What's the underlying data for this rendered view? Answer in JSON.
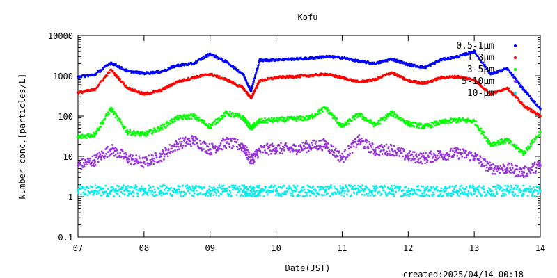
{
  "chart_data": {
    "type": "scatter",
    "title": "Kofu",
    "xlabel": "Date(JST)",
    "ylabel": "Number conc.[particles/L]",
    "yscale": "log",
    "ylim": [
      0.1,
      10000
    ],
    "xlim": [
      7,
      14
    ],
    "xticks": [
      7,
      8,
      9,
      10,
      11,
      12,
      13,
      14
    ],
    "xtick_labels": [
      "07",
      "08",
      "09",
      "10",
      "11",
      "12",
      "13",
      "14"
    ],
    "yticks": [
      0.1,
      1,
      10,
      100,
      1000,
      10000
    ],
    "ytick_labels": [
      "0.1",
      "1",
      "10",
      "100",
      "1000",
      "10000"
    ],
    "legend_position": "top-right",
    "footer": "created:2025/04/14 00:18",
    "series": [
      {
        "name": "0.5-1μm",
        "color": "#0000ff",
        "x": [
          7.0,
          7.25,
          7.5,
          7.75,
          8.0,
          8.25,
          8.5,
          8.75,
          9.0,
          9.25,
          9.5,
          9.62,
          9.75,
          10.0,
          10.25,
          10.5,
          10.75,
          11.0,
          11.25,
          11.5,
          11.75,
          12.0,
          12.25,
          12.5,
          12.75,
          13.0,
          13.25,
          13.5,
          13.75,
          14.0
        ],
        "y": [
          950,
          1050,
          2100,
          1300,
          1150,
          1250,
          1800,
          2000,
          3500,
          2200,
          1100,
          420,
          2400,
          2500,
          2600,
          2700,
          3000,
          2800,
          2300,
          2000,
          2600,
          1900,
          1600,
          2500,
          3000,
          4000,
          1100,
          1500,
          450,
          150
        ]
      },
      {
        "name": "1-3μm",
        "color": "#ff0000",
        "x": [
          7.0,
          7.25,
          7.5,
          7.75,
          8.0,
          8.25,
          8.5,
          8.75,
          9.0,
          9.25,
          9.5,
          9.62,
          9.75,
          10.0,
          10.25,
          10.5,
          10.75,
          11.0,
          11.25,
          11.5,
          11.75,
          12.0,
          12.25,
          12.5,
          12.75,
          13.0,
          13.25,
          13.5,
          13.75,
          14.0
        ],
        "y": [
          380,
          450,
          1400,
          500,
          350,
          430,
          700,
          900,
          1100,
          800,
          500,
          280,
          750,
          900,
          950,
          1000,
          1100,
          900,
          700,
          800,
          1200,
          750,
          650,
          900,
          950,
          800,
          350,
          500,
          180,
          100
        ]
      },
      {
        "name": "3-5μm",
        "color": "#00ff00",
        "x": [
          7.0,
          7.25,
          7.5,
          7.75,
          8.0,
          8.25,
          8.5,
          8.75,
          9.0,
          9.25,
          9.5,
          9.62,
          9.75,
          10.0,
          10.25,
          10.5,
          10.75,
          11.0,
          11.25,
          11.5,
          11.75,
          12.0,
          12.25,
          12.5,
          12.75,
          13.0,
          13.25,
          13.5,
          13.75,
          14.0
        ],
        "y": [
          30,
          35,
          150,
          40,
          35,
          50,
          90,
          100,
          55,
          120,
          90,
          50,
          75,
          80,
          85,
          90,
          160,
          55,
          110,
          60,
          120,
          65,
          55,
          70,
          80,
          75,
          20,
          25,
          12,
          40
        ]
      },
      {
        "name": "5-10μm",
        "color": "#9933dd",
        "x": [
          7.0,
          7.25,
          7.5,
          7.75,
          8.0,
          8.25,
          8.5,
          8.75,
          9.0,
          9.25,
          9.5,
          9.62,
          9.75,
          10.0,
          10.25,
          10.5,
          10.75,
          11.0,
          11.25,
          11.5,
          11.75,
          12.0,
          12.25,
          12.5,
          12.75,
          13.0,
          13.25,
          13.5,
          13.75,
          14.0
        ],
        "y": [
          6,
          8,
          15,
          9,
          7,
          10,
          20,
          25,
          15,
          22,
          18,
          8,
          14,
          16,
          15,
          18,
          20,
          9,
          25,
          14,
          15,
          10,
          9,
          11,
          12,
          10,
          5,
          5,
          4,
          6
        ]
      },
      {
        "name": "10-μm",
        "color": "#00eeee",
        "x": [
          7.0,
          7.25,
          7.5,
          7.75,
          8.0,
          8.25,
          8.5,
          8.75,
          9.0,
          9.25,
          9.5,
          9.62,
          9.75,
          10.0,
          10.25,
          10.5,
          10.75,
          11.0,
          11.25,
          11.5,
          11.75,
          12.0,
          12.25,
          12.5,
          12.75,
          13.0,
          13.25,
          13.5,
          13.75,
          14.0
        ],
        "y": [
          1.4,
          1.4,
          1.4,
          1.4,
          1.4,
          1.4,
          1.4,
          1.4,
          1.4,
          1.4,
          1.4,
          1.4,
          1.4,
          1.4,
          1.4,
          1.4,
          1.4,
          1.4,
          1.4,
          1.4,
          1.4,
          1.4,
          1.4,
          1.4,
          1.4,
          1.4,
          1.4,
          1.4,
          1.4,
          1.4
        ]
      }
    ]
  }
}
